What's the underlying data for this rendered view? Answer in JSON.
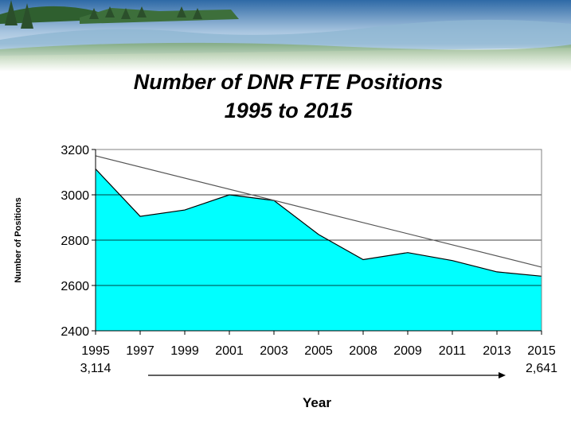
{
  "chart_data": {
    "type": "area",
    "title": [
      "Number of DNR FTE Positions",
      "1995 to 2015"
    ],
    "xlabel": "Year",
    "ylabel": "Number of Positions",
    "categories": [
      "1995",
      "1997",
      "1999",
      "2001",
      "2003",
      "2005",
      "2008",
      "2009",
      "2011",
      "2013",
      "2015"
    ],
    "series": [
      {
        "values": [
          3114,
          2905,
          2933,
          3000,
          2975,
          2825,
          2714,
          2745,
          2710,
          2660,
          2641
        ]
      }
    ],
    "trendline": {
      "start": 3172,
      "end": 2681
    },
    "ylim": [
      2400,
      3200
    ],
    "yticks": [
      2400,
      2600,
      2800,
      3000,
      3200
    ],
    "grid": true,
    "annotations": {
      "start_value": "3,114",
      "end_value": "2,641"
    },
    "colors": {
      "fill": "#00FFFF",
      "line": "#000000",
      "trend": "#555555"
    }
  }
}
